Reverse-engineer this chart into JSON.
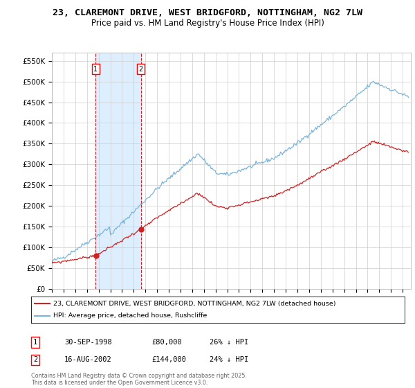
{
  "title": "23, CLAREMONT DRIVE, WEST BRIDGFORD, NOTTINGHAM, NG2 7LW",
  "subtitle": "Price paid vs. HM Land Registry's House Price Index (HPI)",
  "ylim": [
    0,
    570000
  ],
  "yticks": [
    0,
    50000,
    100000,
    150000,
    200000,
    250000,
    300000,
    350000,
    400000,
    450000,
    500000,
    550000
  ],
  "ytick_labels": [
    "£0",
    "£50K",
    "£100K",
    "£150K",
    "£200K",
    "£250K",
    "£300K",
    "£350K",
    "£400K",
    "£450K",
    "£500K",
    "£550K"
  ],
  "hpi_color": "#7ab4d8",
  "price_color": "#cc2222",
  "shade_color": "#ddeeff",
  "vline_color": "#cc2222",
  "background_color": "#ffffff",
  "grid_color": "#cccccc",
  "purchase1_year": 1998.75,
  "purchase1_price": 80000,
  "purchase2_year": 2002.62,
  "purchase2_price": 144000,
  "legend_entry1": "23, CLAREMONT DRIVE, WEST BRIDGFORD, NOTTINGHAM, NG2 7LW (detached house)",
  "legend_entry2": "HPI: Average price, detached house, Rushcliffe",
  "table_row1": [
    "1",
    "30-SEP-1998",
    "£80,000",
    "26% ↓ HPI"
  ],
  "table_row2": [
    "2",
    "16-AUG-2002",
    "£144,000",
    "24% ↓ HPI"
  ],
  "footnote": "Contains HM Land Registry data © Crown copyright and database right 2025.\nThis data is licensed under the Open Government Licence v3.0.",
  "xstart": 1995,
  "xend": 2025.5
}
